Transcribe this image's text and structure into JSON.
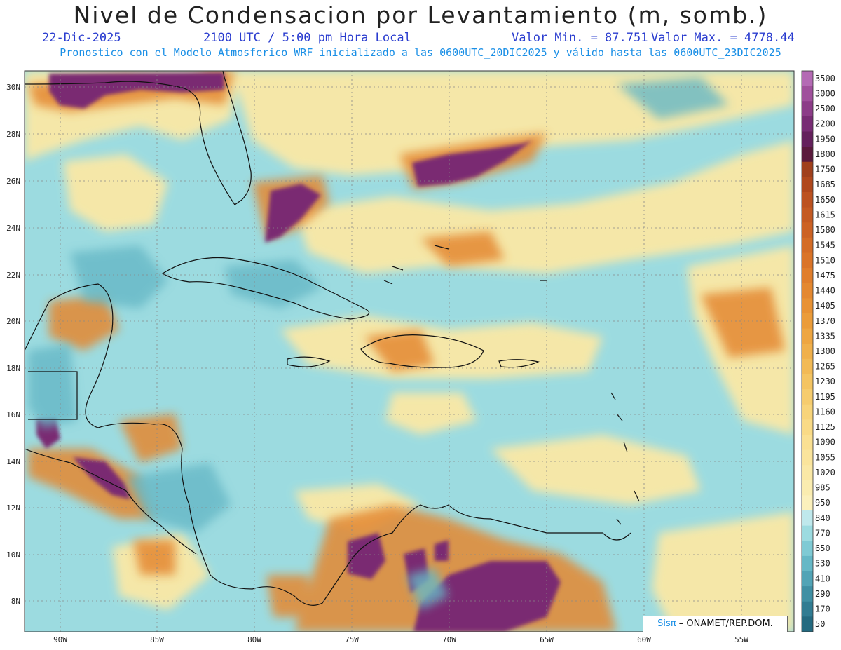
{
  "header": {
    "title": "Nivel de Condensacion por Levantamiento (m, somb.)",
    "date": "22-Dic-2025",
    "time": "2100 UTC / 5:00 pm Hora Local",
    "min_label": "Valor Min. = 87.751",
    "max_label": "Valor Max. = 4778.44",
    "model_info": "Pronostico con el Modelo Atmosferico WRF inicializado a las 0600UTC_20DIC2025 y válido hasta las  0600UTC_23DIC2025"
  },
  "map": {
    "lat_labels": [
      "30N",
      "28N",
      "26N",
      "24N",
      "22N",
      "20N",
      "18N",
      "16N",
      "14N",
      "12N",
      "10N",
      "8N"
    ],
    "lon_labels": [
      "90W",
      "85W",
      "80W",
      "75W",
      "70W",
      "65W",
      "60W",
      "55W"
    ]
  },
  "colorbar": {
    "levels": [
      "3500",
      "3000",
      "2500",
      "2200",
      "1950",
      "1800",
      "1750",
      "1685",
      "1650",
      "1615",
      "1580",
      "1545",
      "1510",
      "1475",
      "1440",
      "1405",
      "1370",
      "1335",
      "1300",
      "1265",
      "1230",
      "1195",
      "1160",
      "1125",
      "1090",
      "1055",
      "1020",
      "985",
      "950",
      "840",
      "770",
      "650",
      "530",
      "410",
      "290",
      "170",
      "50"
    ],
    "colors": [
      "#b46ab4",
      "#a0509c",
      "#8c3c88",
      "#782c74",
      "#64205c",
      "#5a1a3c",
      "#a0401c",
      "#b0481c",
      "#bc5220",
      "#c45a22",
      "#cc6224",
      "#d46c26",
      "#da7428",
      "#e07e2c",
      "#e48830",
      "#e89234",
      "#eb9c3a",
      "#eea642",
      "#f0b04c",
      "#f2ba56",
      "#f4c462",
      "#f6cc6e",
      "#f8d47a",
      "#f9da86",
      "#fae092",
      "#fae49c",
      "#fae8a6",
      "#faecb0",
      "#fbf0bc",
      "#bfe8ec",
      "#9cdbe0",
      "#7fcad4",
      "#66b8c6",
      "#52a4b6",
      "#4090a4",
      "#317c92",
      "#246a80"
    ]
  },
  "credit": {
    "brand": "Sisπ",
    "text": "– ONAMET/REP.DOM."
  }
}
